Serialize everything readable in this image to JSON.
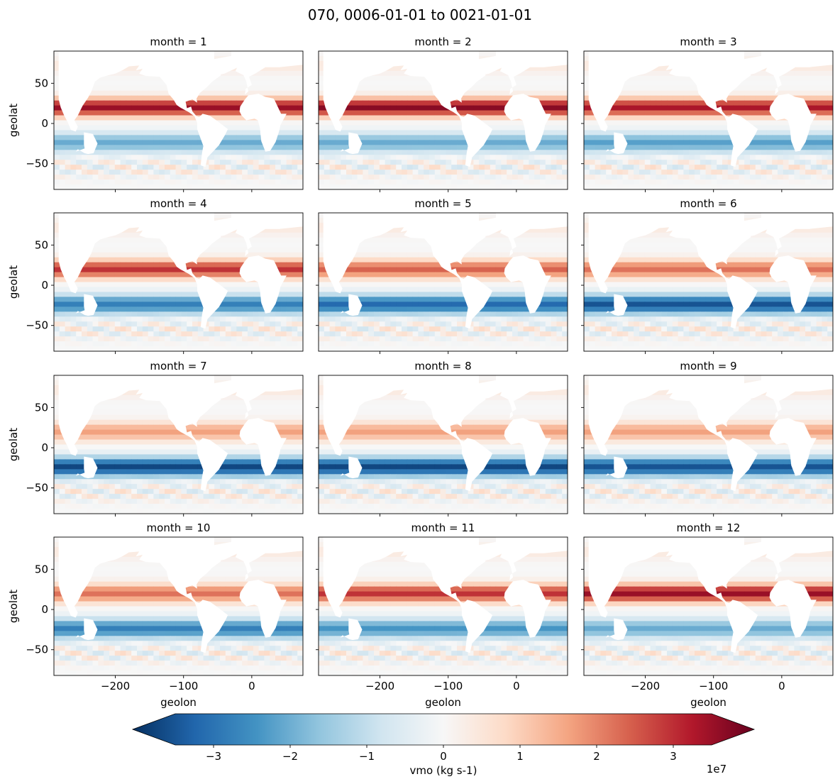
{
  "title": "070, 0006-01-01 to 0021-01-01",
  "chart_data": {
    "type": "heatmap",
    "title": "070, 0006-01-01 to 0021-01-01",
    "panels": [
      {
        "label": "month = 1",
        "month": 1,
        "nh_strength": 0.95,
        "sh_strength": 0.55
      },
      {
        "label": "month = 2",
        "month": 2,
        "nh_strength": 1.0,
        "sh_strength": 0.55
      },
      {
        "label": "month = 3",
        "month": 3,
        "nh_strength": 0.9,
        "sh_strength": 0.6
      },
      {
        "label": "month = 4",
        "month": 4,
        "nh_strength": 0.8,
        "sh_strength": 0.75
      },
      {
        "label": "month = 5",
        "month": 5,
        "nh_strength": 0.65,
        "sh_strength": 0.85
      },
      {
        "label": "month = 6",
        "month": 6,
        "nh_strength": 0.6,
        "sh_strength": 0.95
      },
      {
        "label": "month = 7",
        "month": 7,
        "nh_strength": 0.45,
        "sh_strength": 1.0
      },
      {
        "label": "month = 8",
        "month": 8,
        "nh_strength": 0.45,
        "sh_strength": 1.0
      },
      {
        "label": "month = 9",
        "month": 9,
        "nh_strength": 0.45,
        "sh_strength": 0.95
      },
      {
        "label": "month = 10",
        "month": 10,
        "nh_strength": 0.6,
        "sh_strength": 0.75
      },
      {
        "label": "month = 11",
        "month": 11,
        "nh_strength": 0.8,
        "sh_strength": 0.65
      },
      {
        "label": "month = 12",
        "month": 12,
        "nh_strength": 0.95,
        "sh_strength": 0.55
      }
    ],
    "xlabel": "geolon",
    "ylabel": "geolat",
    "xlim": [
      -290,
      75
    ],
    "ylim": [
      -82,
      90
    ],
    "xticks": [
      -200,
      -100,
      0
    ],
    "xtick_labels": [
      "−200",
      "−100",
      "0"
    ],
    "yticks": [
      -50,
      0,
      50
    ],
    "ytick_labels": [
      "−50",
      "0",
      "50"
    ],
    "colorbar": {
      "label": "vmo (kg s-1)",
      "range": [
        -3.5,
        3.5
      ],
      "ticks": [
        -3,
        -2,
        -1,
        0,
        1,
        2,
        3
      ],
      "tick_labels": [
        "−3",
        "−2",
        "−1",
        "0",
        "1",
        "2",
        "3"
      ],
      "scale_label": "1e7",
      "colormap": "RdBu_r",
      "extend": "both"
    }
  }
}
